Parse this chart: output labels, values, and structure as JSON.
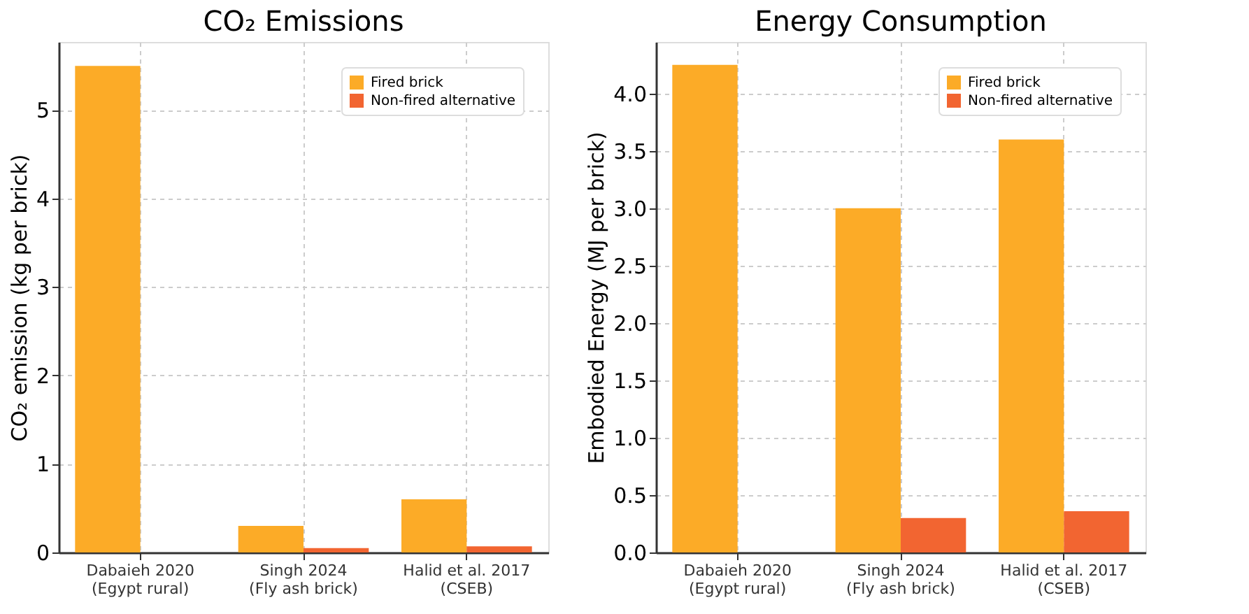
{
  "chart_data": [
    {
      "type": "bar",
      "title": "CO₂ Emissions",
      "ylabel": "CO₂ emission (kg per brick)",
      "categories": [
        "Dabaieh 2020\n(Egypt rural)",
        "Singh 2024\n(Fly ash brick)",
        "Halid et al. 2017\n(CSEB)"
      ],
      "series": [
        {
          "name": "Fired brick",
          "color": "#fcab27",
          "values": [
            5.5,
            0.3,
            0.6
          ]
        },
        {
          "name": "Non-fired alternative",
          "color": "#f26531",
          "values": [
            null,
            0.05,
            0.07
          ]
        }
      ],
      "ylim": [
        0,
        5.77
      ],
      "yticks": [
        0,
        1,
        2,
        3,
        4,
        5
      ],
      "grid": true,
      "legend": "top right"
    },
    {
      "type": "bar",
      "title": "Energy Consumption",
      "ylabel": "Embodied Energy (MJ per brick)",
      "categories": [
        "Dabaieh 2020\n(Egypt rural)",
        "Singh 2024\n(Fly ash brick)",
        "Halid et al. 2017\n(CSEB)"
      ],
      "series": [
        {
          "name": "Fired brick",
          "color": "#fcab27",
          "values": [
            4.25,
            3.0,
            3.6
          ]
        },
        {
          "name": "Non-fired alternative",
          "color": "#f26531",
          "values": [
            null,
            0.3,
            0.36
          ]
        }
      ],
      "ylim": [
        0,
        4.45
      ],
      "yticks": [
        {
          "value": 0,
          "label": "0.0"
        },
        {
          "value": 0.5,
          "label": "0.5"
        },
        {
          "value": 1,
          "label": "1.0"
        },
        {
          "value": 1.5,
          "label": "1.5"
        },
        {
          "value": 2,
          "label": "2.0"
        },
        {
          "value": 2.5,
          "label": "2.5"
        },
        {
          "value": 3,
          "label": "3.0"
        },
        {
          "value": 3.5,
          "label": "3.5"
        },
        {
          "value": 4,
          "label": "4.0"
        }
      ],
      "grid": true,
      "legend": "top right"
    }
  ]
}
